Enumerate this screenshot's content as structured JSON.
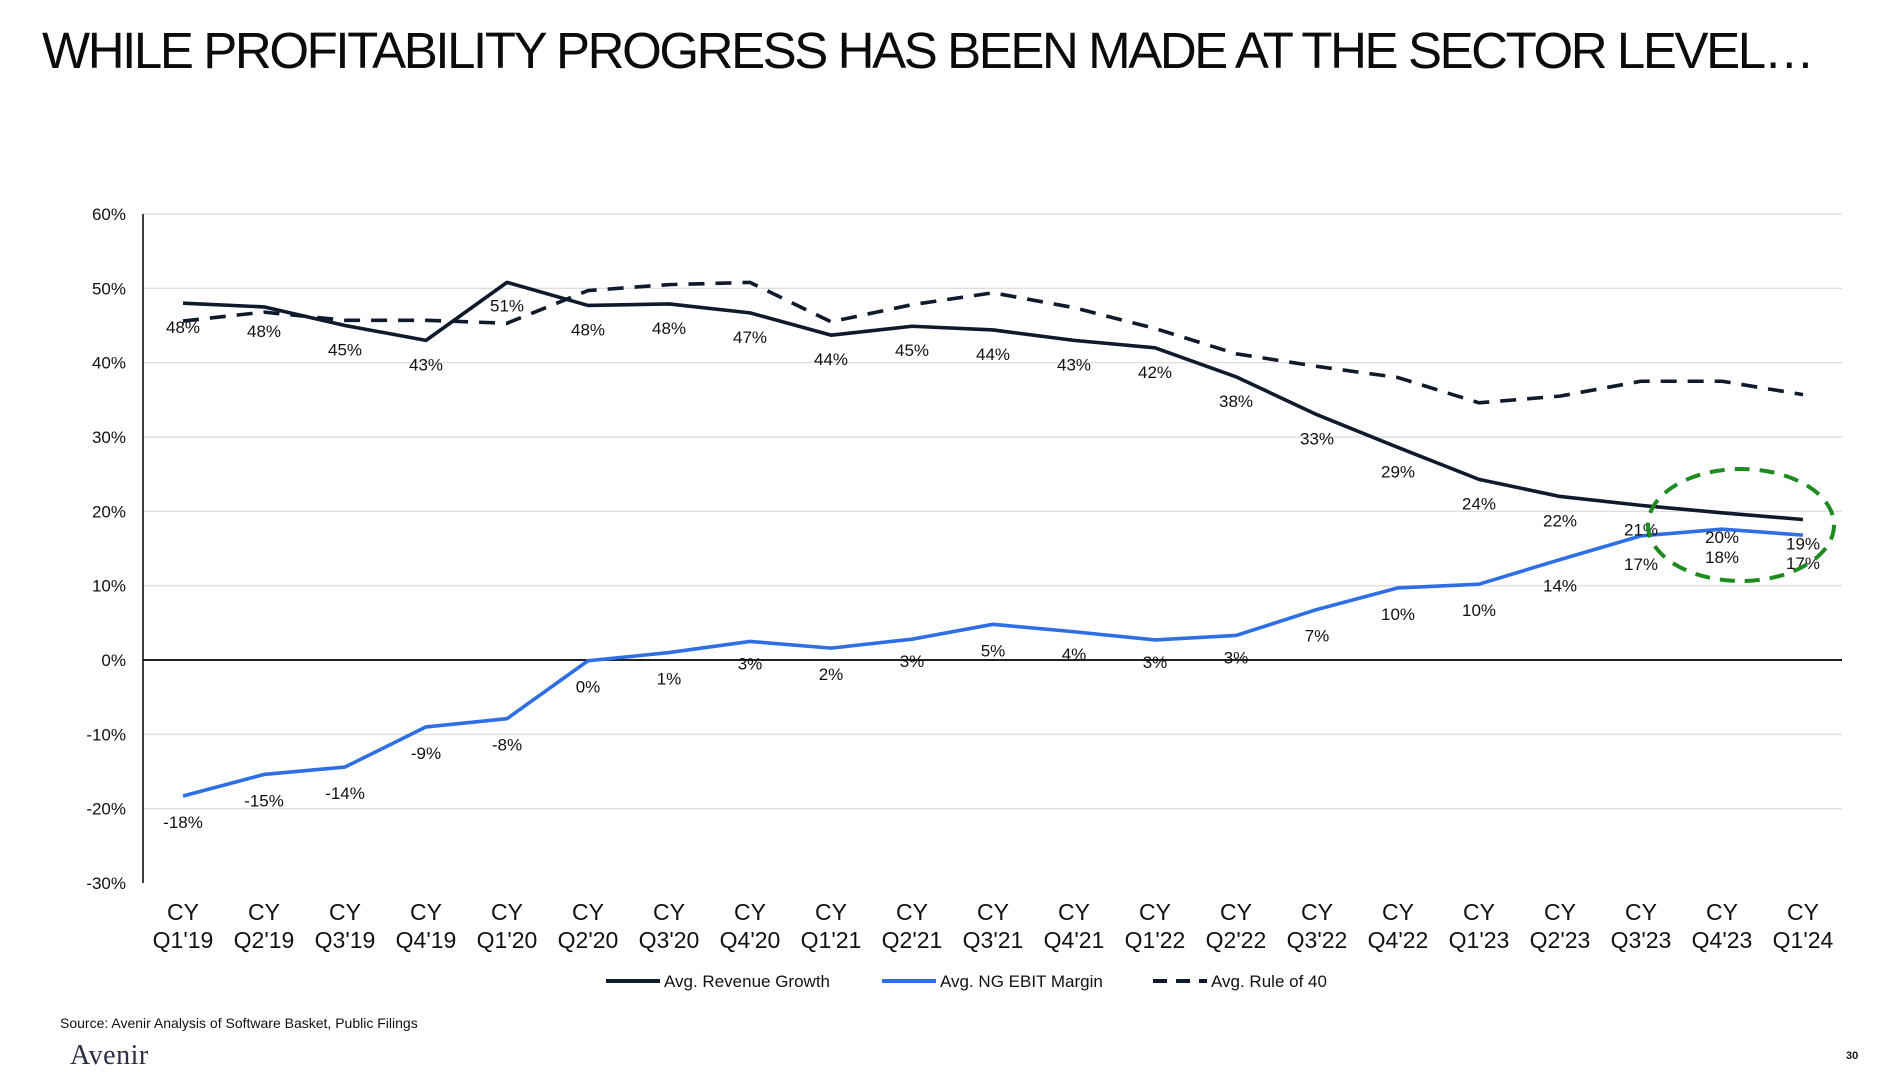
{
  "slide": {
    "title": "WHILE PROFITABILITY PROGRESS HAS BEEN MADE AT THE SECTOR LEVEL…",
    "source": "Source: Avenir Analysis of Software Basket, Public Filings",
    "logo": "Avenir",
    "page_number": "30"
  },
  "colors": {
    "revenue": "#0f1a2c",
    "ebit": "#2f6fe4",
    "rule40": "#0f1a2c",
    "highlight": "#1f8a1f",
    "gridline": "#d9d9d9",
    "axis": "#000000"
  },
  "chart_data": {
    "type": "line",
    "x": [
      "CY Q1'19",
      "CY Q2'19",
      "CY Q3'19",
      "CY Q4'19",
      "CY Q1'20",
      "CY Q2'20",
      "CY Q3'20",
      "CY Q4'20",
      "CY Q1'21",
      "CY Q2'21",
      "CY Q3'21",
      "CY Q4'21",
      "CY Q1'22",
      "CY Q2'22",
      "CY Q3'22",
      "CY Q4'22",
      "CY Q1'23",
      "CY Q2'23",
      "CY Q3'23",
      "CY Q4'23",
      "CY Q1'24"
    ],
    "x_tick_lines": [
      [
        "CY",
        "Q1'19"
      ],
      [
        "CY",
        "Q2'19"
      ],
      [
        "CY",
        "Q3'19"
      ],
      [
        "CY",
        "Q4'19"
      ],
      [
        "CY",
        "Q1'20"
      ],
      [
        "CY",
        "Q2'20"
      ],
      [
        "CY",
        "Q3'20"
      ],
      [
        "CY",
        "Q4'20"
      ],
      [
        "CY",
        "Q1'21"
      ],
      [
        "CY",
        "Q2'21"
      ],
      [
        "CY",
        "Q3'21"
      ],
      [
        "CY",
        "Q4'21"
      ],
      [
        "CY",
        "Q1'22"
      ],
      [
        "CY",
        "Q2'22"
      ],
      [
        "CY",
        "Q3'22"
      ],
      [
        "CY",
        "Q4'22"
      ],
      [
        "CY",
        "Q1'23"
      ],
      [
        "CY",
        "Q2'23"
      ],
      [
        "CY",
        "Q3'23"
      ],
      [
        "CY",
        "Q4'23"
      ],
      [
        "CY",
        "Q1'24"
      ]
    ],
    "ylim": [
      -30,
      60
    ],
    "y_ticks": [
      -30,
      -20,
      -10,
      0,
      10,
      20,
      30,
      40,
      50,
      60
    ],
    "y_tick_labels": [
      "-30%",
      "-20%",
      "-10%",
      "0%",
      "10%",
      "20%",
      "30%",
      "40%",
      "50%",
      "60%"
    ],
    "grid": true,
    "legend_position": "bottom",
    "series": [
      {
        "name": "Avg. Revenue Growth",
        "style": "solid",
        "values": [
          48.0,
          47.5,
          45.0,
          43.0,
          50.8,
          47.7,
          47.9,
          46.7,
          43.7,
          44.9,
          44.4,
          43.0,
          42.0,
          38.1,
          33.0,
          28.6,
          24.3,
          22.0,
          20.8,
          19.8,
          18.9
        ],
        "labels": [
          "48%",
          "48%",
          "45%",
          "43%",
          "51%",
          "48%",
          "48%",
          "47%",
          "44%",
          "45%",
          "44%",
          "43%",
          "42%",
          "38%",
          "33%",
          "29%",
          "24%",
          "22%",
          "21%",
          "20%",
          "19%"
        ]
      },
      {
        "name": "Avg. NG EBIT Margin",
        "style": "solid",
        "values": [
          -18.3,
          -15.4,
          -14.4,
          -9.0,
          -7.9,
          -0.1,
          1.0,
          2.5,
          1.6,
          2.8,
          4.8,
          3.8,
          2.7,
          3.3,
          6.8,
          9.7,
          10.2,
          13.5,
          16.7,
          17.6,
          16.8
        ],
        "labels": [
          "-18%",
          "-15%",
          "-14%",
          "-9%",
          "-8%",
          "0%",
          "1%",
          "3%",
          "2%",
          "3%",
          "5%",
          "4%",
          "3%",
          "3%",
          "7%",
          "10%",
          "10%",
          "14%",
          "17%",
          "18%",
          "17%"
        ]
      },
      {
        "name": "Avg. Rule of 40",
        "style": "dashed",
        "values": [
          45.6,
          46.8,
          45.7,
          45.7,
          45.3,
          49.7,
          50.5,
          50.8,
          45.5,
          47.8,
          49.4,
          47.4,
          44.6,
          41.2,
          39.5,
          38.0,
          34.6,
          35.5,
          37.5,
          37.5,
          35.7
        ]
      }
    ]
  }
}
